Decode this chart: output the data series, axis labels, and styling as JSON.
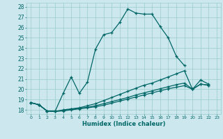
{
  "xlabel": "Humidex (Indice chaleur)",
  "xlim": [
    -0.5,
    23.5
  ],
  "ylim": [
    17.6,
    28.4
  ],
  "xticks": [
    0,
    1,
    2,
    3,
    4,
    5,
    6,
    7,
    8,
    9,
    10,
    11,
    12,
    13,
    14,
    15,
    16,
    17,
    18,
    19,
    20,
    21,
    22,
    23
  ],
  "yticks": [
    18,
    19,
    20,
    21,
    22,
    23,
    24,
    25,
    26,
    27,
    28
  ],
  "bg_color": "#cce8ee",
  "line_color": "#006666",
  "grid_color": "#99cccc",
  "lines": [
    {
      "x": [
        0,
        1,
        2,
        3,
        4,
        5,
        6,
        7,
        8,
        9,
        10,
        11,
        12,
        13,
        14,
        15,
        16,
        17,
        18,
        19
      ],
      "y": [
        18.7,
        18.5,
        17.9,
        17.85,
        19.6,
        21.2,
        19.6,
        20.7,
        23.9,
        25.3,
        25.5,
        26.5,
        27.8,
        27.4,
        27.3,
        27.3,
        26.1,
        25.0,
        23.2,
        22.3
      ]
    },
    {
      "x": [
        0,
        1,
        2,
        3,
        4,
        5,
        6,
        7,
        8,
        9,
        10,
        11,
        12,
        13,
        14,
        15,
        16,
        17,
        18,
        19,
        20,
        21,
        22
      ],
      "y": [
        18.7,
        18.5,
        17.9,
        17.85,
        18.0,
        18.1,
        18.2,
        18.4,
        18.6,
        18.9,
        19.2,
        19.5,
        19.8,
        20.1,
        20.4,
        20.6,
        20.9,
        21.2,
        21.5,
        21.8,
        20.0,
        20.9,
        20.5
      ]
    },
    {
      "x": [
        0,
        1,
        2,
        3,
        4,
        5,
        6,
        7,
        8,
        9,
        10,
        11,
        12,
        13,
        14,
        15,
        16,
        17,
        18,
        19,
        20,
        21,
        22
      ],
      "y": [
        18.7,
        18.5,
        17.9,
        17.85,
        17.95,
        18.05,
        18.15,
        18.25,
        18.4,
        18.6,
        18.8,
        19.0,
        19.2,
        19.45,
        19.65,
        19.85,
        20.05,
        20.25,
        20.45,
        20.6,
        20.0,
        20.5,
        20.4
      ]
    },
    {
      "x": [
        0,
        1,
        2,
        3,
        4,
        5,
        6,
        7,
        8,
        9,
        10,
        11,
        12,
        13,
        14,
        15,
        16,
        17,
        18,
        19,
        20,
        21,
        22
      ],
      "y": [
        18.7,
        18.5,
        17.9,
        17.85,
        17.9,
        18.0,
        18.1,
        18.2,
        18.3,
        18.45,
        18.65,
        18.85,
        19.05,
        19.25,
        19.45,
        19.65,
        19.85,
        20.05,
        20.2,
        20.35,
        20.0,
        20.5,
        20.4
      ]
    }
  ]
}
